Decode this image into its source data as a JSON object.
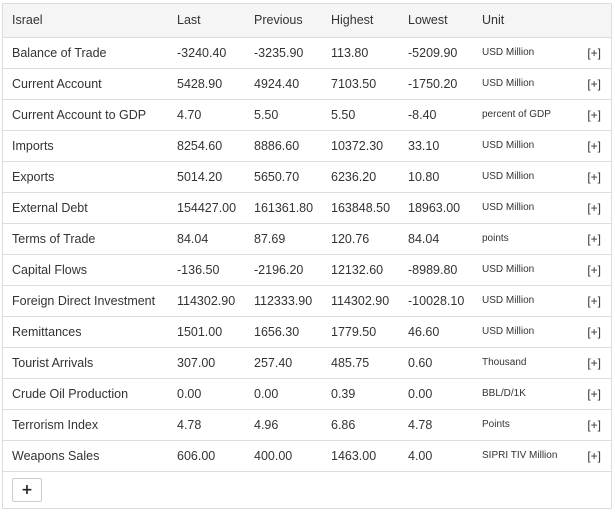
{
  "table": {
    "headers": [
      "Israel",
      "Last",
      "Previous",
      "Highest",
      "Lowest",
      "Unit"
    ],
    "expand_label": "[+]",
    "rows": [
      {
        "name": "Balance of Trade",
        "last": "-3240.40",
        "previous": "-3235.90",
        "highest": "113.80",
        "lowest": "-5209.90",
        "unit": "USD Million"
      },
      {
        "name": "Current Account",
        "last": "5428.90",
        "previous": "4924.40",
        "highest": "7103.50",
        "lowest": "-1750.20",
        "unit": "USD Million"
      },
      {
        "name": "Current Account to GDP",
        "last": "4.70",
        "previous": "5.50",
        "highest": "5.50",
        "lowest": "-8.40",
        "unit": "percent of GDP"
      },
      {
        "name": "Imports",
        "last": "8254.60",
        "previous": "8886.60",
        "highest": "10372.30",
        "lowest": "33.10",
        "unit": "USD Million"
      },
      {
        "name": "Exports",
        "last": "5014.20",
        "previous": "5650.70",
        "highest": "6236.20",
        "lowest": "10.80",
        "unit": "USD Million"
      },
      {
        "name": "External Debt",
        "last": "154427.00",
        "previous": "161361.80",
        "highest": "163848.50",
        "lowest": "18963.00",
        "unit": "USD Million"
      },
      {
        "name": "Terms of Trade",
        "last": "84.04",
        "previous": "87.69",
        "highest": "120.76",
        "lowest": "84.04",
        "unit": "points"
      },
      {
        "name": "Capital Flows",
        "last": "-136.50",
        "previous": "-2196.20",
        "highest": "12132.60",
        "lowest": "-8989.80",
        "unit": "USD Million"
      },
      {
        "name": "Foreign Direct Investment",
        "last": "114302.90",
        "previous": "112333.90",
        "highest": "114302.90",
        "lowest": "-10028.10",
        "unit": "USD Million"
      },
      {
        "name": "Remittances",
        "last": "1501.00",
        "previous": "1656.30",
        "highest": "1779.50",
        "lowest": "46.60",
        "unit": "USD Million"
      },
      {
        "name": "Tourist Arrivals",
        "last": "307.00",
        "previous": "257.40",
        "highest": "485.75",
        "lowest": "0.60",
        "unit": "Thousand"
      },
      {
        "name": "Crude Oil Production",
        "last": "0.00",
        "previous": "0.00",
        "highest": "0.39",
        "lowest": "0.00",
        "unit": "BBL/D/1K"
      },
      {
        "name": "Terrorism Index",
        "last": "4.78",
        "previous": "4.96",
        "highest": "6.86",
        "lowest": "4.78",
        "unit": "Points"
      },
      {
        "name": "Weapons Sales",
        "last": "606.00",
        "previous": "400.00",
        "highest": "1463.00",
        "lowest": "4.00",
        "unit": "SIPRI TIV Million"
      }
    ]
  },
  "footer": {
    "add_button_label": "+"
  }
}
